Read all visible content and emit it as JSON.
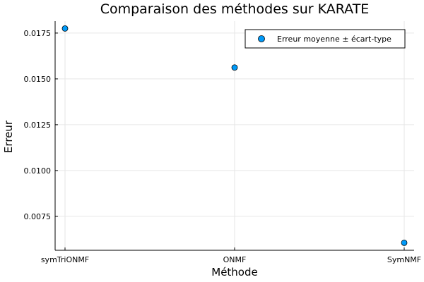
{
  "chart_data": {
    "type": "scatter",
    "title": "Comparaison des méthodes sur KARATE",
    "xlabel": "Méthode",
    "ylabel": "Erreur",
    "categories": [
      "symTriONMF",
      "ONMF",
      "SymNMF"
    ],
    "series": [
      {
        "name": "Erreur moyenne ± écart-type",
        "values": [
          0.01775,
          0.01562,
          0.00606
        ],
        "color": "#009af9"
      }
    ],
    "ylim": [
      0.00565,
      0.01815
    ],
    "yticks": [
      0.0075,
      0.01,
      0.0125,
      0.015,
      0.0175
    ],
    "ytick_labels": [
      "0.0075",
      "0.0100",
      "0.0125",
      "0.0150",
      "0.0175"
    ],
    "grid": true,
    "legend_position": "top-right"
  }
}
